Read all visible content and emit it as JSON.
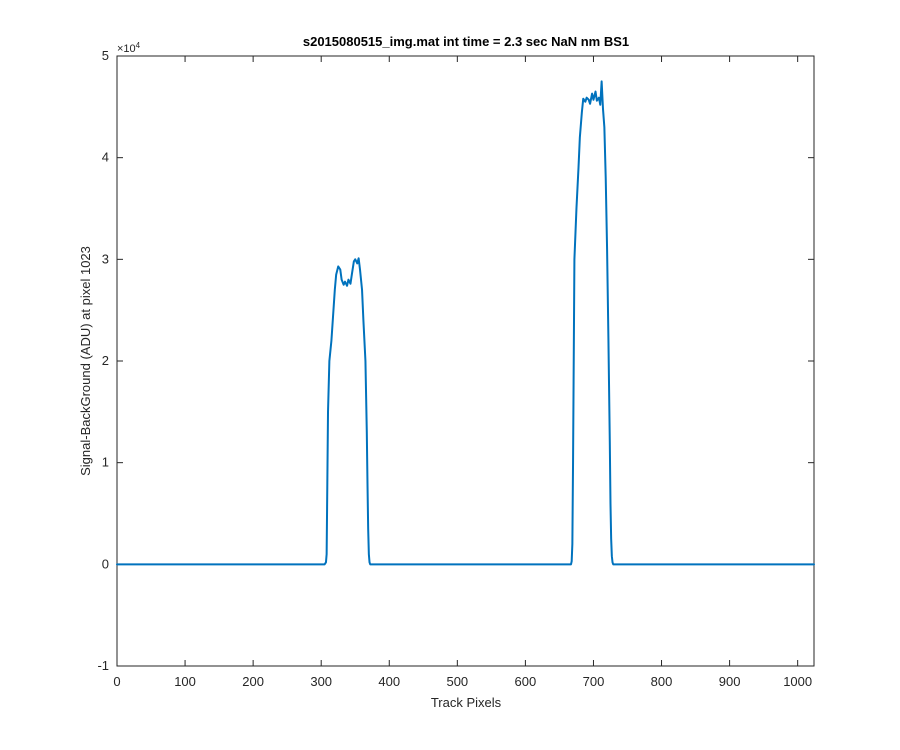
{
  "chart_data": {
    "type": "line",
    "title": "s2015080515_img.mat int time = 2.3 sec  NaN nm BS1",
    "xlabel": "Track Pixels",
    "ylabel": "Signal-BackGround (ADU) at pixel 1023",
    "y_exponent_label": "×10",
    "y_exponent_power": "4",
    "xlim": [
      0,
      1024
    ],
    "ylim": [
      -10000,
      50000
    ],
    "xticks": [
      0,
      100,
      200,
      300,
      400,
      500,
      600,
      700,
      800,
      900,
      1000
    ],
    "xtick_labels": [
      "0",
      "100",
      "200",
      "300",
      "400",
      "500",
      "600",
      "700",
      "800",
      "900",
      "1000"
    ],
    "yticks": [
      -10000,
      0,
      10000,
      20000,
      30000,
      40000,
      50000
    ],
    "ytick_labels": [
      "-1",
      "0",
      "1",
      "2",
      "3",
      "4",
      "5"
    ],
    "grid": false,
    "colors": {
      "line": "#0072BD",
      "axes": "#262626",
      "background": "#ffffff"
    },
    "series": [
      {
        "x": [
          0,
          300,
          303,
          305,
          307,
          308,
          309,
          310,
          312,
          315,
          318,
          320,
          322,
          325,
          328,
          330,
          333,
          335,
          338,
          340,
          343,
          345,
          348,
          350,
          353,
          355,
          357,
          360,
          362,
          365,
          367,
          368,
          369,
          370,
          371,
          372,
          373,
          375,
          380,
          665,
          667,
          668,
          669,
          670,
          671,
          672,
          675,
          678,
          680,
          683,
          685,
          688,
          690,
          693,
          695,
          698,
          700,
          703,
          705,
          708,
          710,
          712,
          714,
          716,
          718,
          720,
          722,
          724,
          725,
          726,
          727,
          728,
          729,
          730,
          733,
          1024
        ],
        "y": [
          0,
          0,
          0,
          0,
          200,
          1000,
          8000,
          15000,
          20000,
          22000,
          25000,
          27000,
          28500,
          29300,
          29000,
          28000,
          27500,
          27800,
          27400,
          28000,
          27600,
          28500,
          29800,
          30000,
          29600,
          30100,
          29000,
          27000,
          24000,
          20000,
          13000,
          8000,
          3500,
          1000,
          200,
          0,
          0,
          0,
          0,
          0,
          0,
          300,
          2000,
          10000,
          20000,
          30000,
          35000,
          39000,
          42000,
          44500,
          45800,
          45500,
          45900,
          45700,
          45300,
          46300,
          45700,
          46500,
          45600,
          45900,
          45200,
          47500,
          44800,
          43000,
          38000,
          31000,
          22000,
          12000,
          6000,
          2500,
          800,
          200,
          0,
          0,
          0,
          0
        ]
      }
    ]
  }
}
